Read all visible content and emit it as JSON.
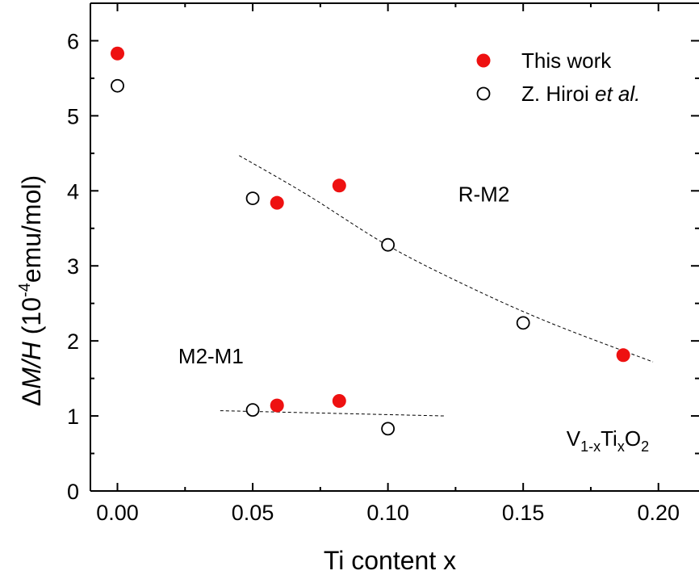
{
  "chart_data": {
    "type": "scatter",
    "xlabel": "Ti content x",
    "ylabel": {
      "delta": "Δ",
      "italic": "M/H",
      "paren_open": " (10",
      "exponent": "-4",
      "unit": "emu/mol)"
    },
    "xlim": [
      -0.01,
      0.215
    ],
    "ylim": [
      0,
      6.5
    ],
    "xticks": [
      0.0,
      0.05,
      0.1,
      0.15,
      0.2
    ],
    "xtick_labels": [
      "0.00",
      "0.05",
      "0.10",
      "0.15",
      "0.20"
    ],
    "yticks": [
      0,
      1,
      2,
      3,
      4,
      5,
      6
    ],
    "ytick_labels": [
      "0",
      "1",
      "2",
      "3",
      "4",
      "5",
      "6"
    ],
    "grid": false,
    "legend_position": "top-right",
    "series": [
      {
        "name": "This work",
        "marker": "filled-circle",
        "color": "#ee1111",
        "points": [
          {
            "x": 0.0,
            "y": 5.83
          },
          {
            "x": 0.059,
            "y": 3.84
          },
          {
            "x": 0.082,
            "y": 4.07
          },
          {
            "x": 0.187,
            "y": 1.81
          },
          {
            "x": 0.059,
            "y": 1.14
          },
          {
            "x": 0.082,
            "y": 1.2
          }
        ]
      },
      {
        "name_plain": "Z. Hiroi ",
        "name_italic": "et al.",
        "marker": "open-circle",
        "color": "#000000",
        "points": [
          {
            "x": 0.0,
            "y": 5.4
          },
          {
            "x": 0.05,
            "y": 3.9
          },
          {
            "x": 0.1,
            "y": 3.28
          },
          {
            "x": 0.15,
            "y": 2.24
          },
          {
            "x": 0.05,
            "y": 1.08
          },
          {
            "x": 0.1,
            "y": 0.83
          }
        ]
      }
    ],
    "guide_lines": [
      {
        "style": "dashed",
        "x": [
          0.045,
          0.07,
          0.1,
          0.13,
          0.16,
          0.198
        ],
        "y": [
          4.47,
          3.95,
          3.27,
          2.72,
          2.24,
          1.72
        ]
      },
      {
        "style": "dashed",
        "x": [
          0.038,
          0.121
        ],
        "y": [
          1.07,
          1.0
        ]
      }
    ],
    "annotations": [
      {
        "text": "R-M2",
        "x": 0.126,
        "y": 3.86
      },
      {
        "text": "M2-M1",
        "x": 0.0225,
        "y": 1.7
      }
    ],
    "formula": {
      "p1": "V",
      "s1": "1-x",
      "p2": "Ti",
      "s2": "x",
      "p3": "O",
      "s3": "2",
      "x": 0.166,
      "y": 0.6
    }
  }
}
